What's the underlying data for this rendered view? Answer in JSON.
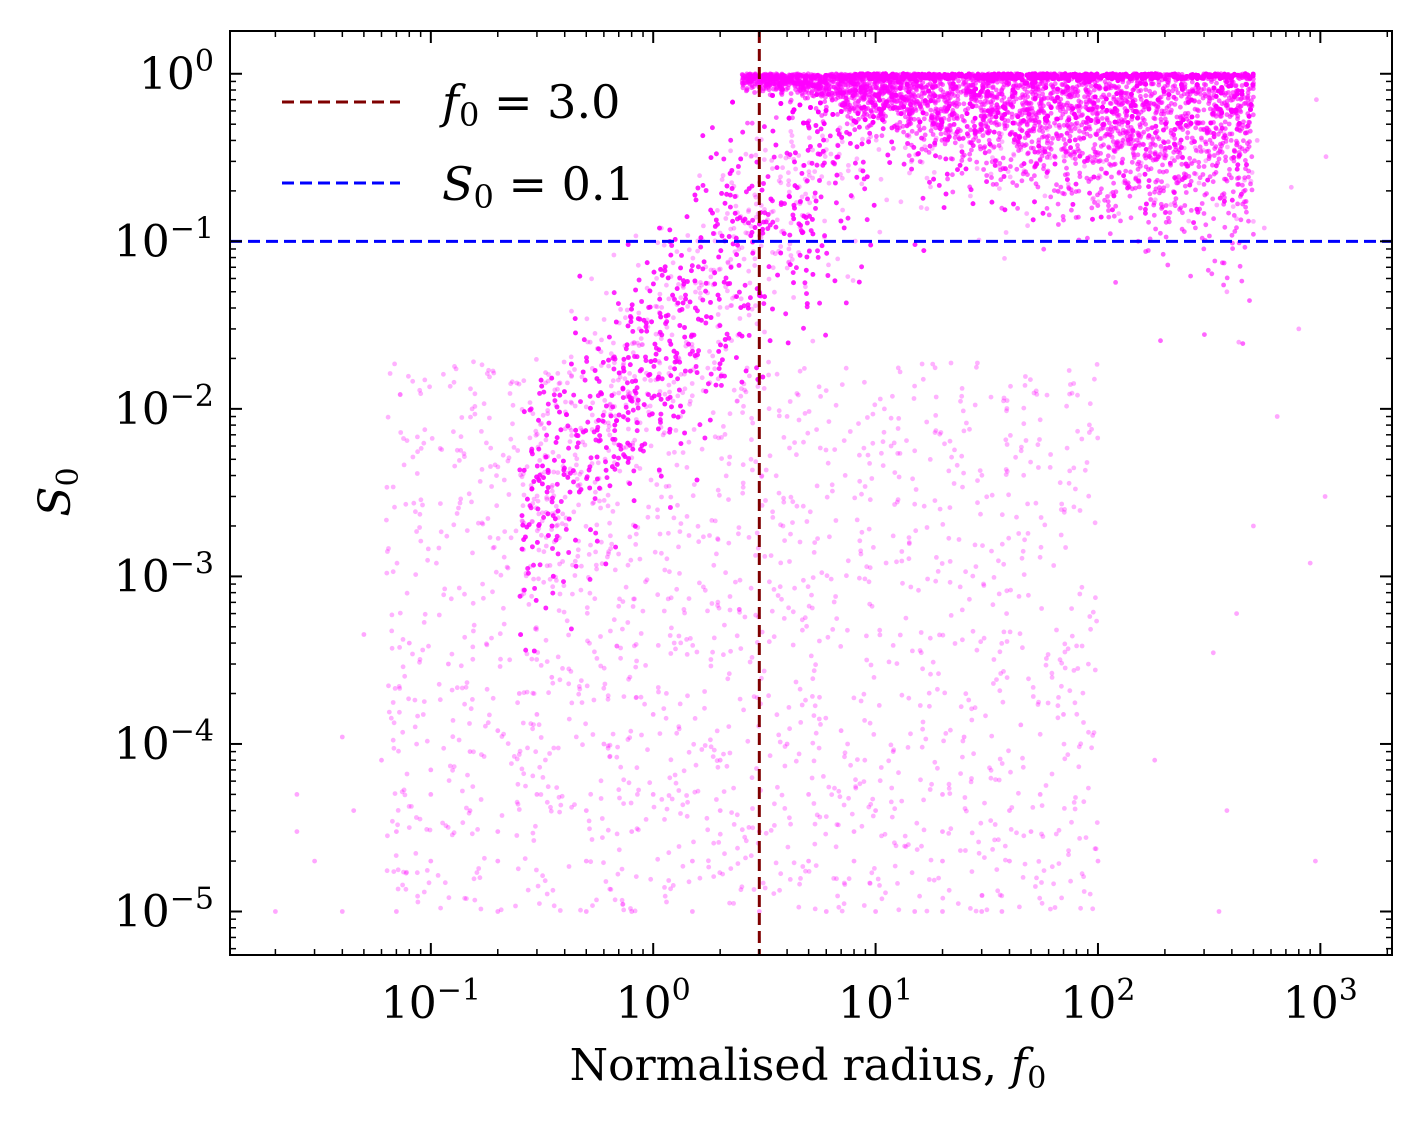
{
  "chart_data": {
    "type": "scatter",
    "title": "",
    "xlabel": "Normalised radius, f0",
    "xlabel_parts": {
      "text": "Normalised radius, ",
      "var": "f",
      "sub": "0"
    },
    "ylabel": "S0",
    "ylabel_parts": {
      "var": "S",
      "sub": "0"
    },
    "xscale": "log",
    "yscale": "log",
    "xlim": [
      0.0125,
      2100
    ],
    "ylim": [
      5.5e-06,
      1.8
    ],
    "xticks": [
      {
        "value": 0.1,
        "base": "10",
        "exp": "−1"
      },
      {
        "value": 1,
        "base": "10",
        "exp": "0"
      },
      {
        "value": 10,
        "base": "10",
        "exp": "1"
      },
      {
        "value": 100,
        "base": "10",
        "exp": "2"
      },
      {
        "value": 1000,
        "base": "10",
        "exp": "3"
      }
    ],
    "yticks": [
      {
        "value": 1e-05,
        "base": "10",
        "exp": "−5"
      },
      {
        "value": 0.0001,
        "base": "10",
        "exp": "−4"
      },
      {
        "value": 0.001,
        "base": "10",
        "exp": "−3"
      },
      {
        "value": 0.01,
        "base": "10",
        "exp": "−2"
      },
      {
        "value": 0.1,
        "base": "10",
        "exp": "−1"
      },
      {
        "value": 1,
        "base": "10",
        "exp": "0"
      }
    ],
    "grid": false,
    "legend_position": "top-left",
    "point_color": "#ff00ff",
    "reference_lines": [
      {
        "orientation": "vertical",
        "value": 3.0,
        "color": "#7f0000",
        "style": "dashed",
        "label": "f0 = 3.0",
        "label_var": "f",
        "label_sub": "0",
        "label_rest": " = 3.0"
      },
      {
        "orientation": "horizontal",
        "value": 0.1,
        "color": "#0000ff",
        "style": "dashed",
        "label": "S0 = 0.1",
        "label_var": "S",
        "label_sub": "0",
        "label_rest": " = 0.1"
      }
    ],
    "series": [
      {
        "points": [
          [
            0.02,
            1e-05
          ],
          [
            0.04,
            1e-05
          ],
          [
            0.07,
            1e-05
          ],
          [
            0.2,
            1e-05
          ],
          [
            0.5,
            1e-05
          ],
          [
            0.8,
            1e-05
          ],
          [
            1.5,
            1e-05
          ],
          [
            3,
            1e-05
          ],
          [
            6,
            1e-05
          ],
          [
            10,
            1e-05
          ],
          [
            15,
            1e-05
          ],
          [
            20,
            1e-05
          ],
          [
            30,
            1e-05
          ],
          [
            37,
            1e-05
          ],
          [
            350,
            1e-05
          ],
          [
            0.03,
            2e-05
          ],
          [
            0.1,
            2e-05
          ],
          [
            0.2,
            2e-05
          ],
          [
            0.5,
            2e-05
          ],
          [
            1.5,
            2e-05
          ],
          [
            5,
            2e-05
          ],
          [
            8,
            2e-05
          ],
          [
            20,
            2e-05
          ],
          [
            40,
            2e-05
          ],
          [
            100,
            2e-05
          ],
          [
            950,
            2e-05
          ],
          [
            0.025,
            3e-05
          ],
          [
            0.07,
            3e-05
          ],
          [
            0.2,
            3e-05
          ],
          [
            0.8,
            3e-05
          ],
          [
            3,
            3e-05
          ],
          [
            8,
            3e-05
          ],
          [
            20,
            3e-05
          ],
          [
            50,
            3e-05
          ],
          [
            0.045,
            4e-05
          ],
          [
            0.15,
            4e-05
          ],
          [
            0.5,
            4e-05
          ],
          [
            2,
            4e-05
          ],
          [
            10,
            4e-05
          ],
          [
            40,
            4e-05
          ],
          [
            380,
            4e-05
          ],
          [
            0.025,
            5e-05
          ],
          [
            0.1,
            5e-05
          ],
          [
            0.3,
            5e-05
          ],
          [
            1,
            5e-05
          ],
          [
            5,
            5e-05
          ],
          [
            20,
            5e-05
          ],
          [
            55,
            5e-05
          ],
          [
            0.04,
            0.00011
          ],
          [
            0.06,
            8e-05
          ],
          [
            0.1,
            7e-05
          ],
          [
            0.15,
            9e-05
          ],
          [
            0.2,
            0.00012
          ],
          [
            0.3,
            0.00015
          ],
          [
            0.25,
            0.0002
          ],
          [
            0.35,
            0.00025
          ],
          [
            0.05,
            0.00045
          ],
          [
            0.08,
            0.0004
          ],
          [
            0.12,
            0.0003
          ],
          [
            0.6,
            0.0001
          ],
          [
            1,
            0.00015
          ],
          [
            2,
            8e-05
          ],
          [
            4,
            0.0001
          ],
          [
            7,
            0.00012
          ],
          [
            12,
            9e-05
          ],
          [
            25,
            0.00011
          ],
          [
            45,
            0.00013
          ],
          [
            70,
            0.00015
          ],
          [
            180,
            8e-05
          ],
          [
            330,
            0.00035
          ],
          [
            420,
            0.0006
          ],
          [
            900,
            0.0012
          ],
          [
            1050,
            0.003
          ],
          [
            500,
            0.002
          ],
          [
            800,
            0.03
          ],
          [
            640,
            0.009
          ],
          [
            560,
            0.12
          ],
          [
            520,
            0.4
          ],
          [
            740,
            0.21
          ],
          [
            960,
            0.7
          ],
          [
            1060,
            0.32
          ],
          [
            430,
            0.025
          ],
          [
            380,
            0.05
          ]
        ]
      }
    ],
    "density_bands": [
      {
        "x_min": 0.1,
        "x_max": 3,
        "y_center_fn": "core",
        "count": 700
      }
    ]
  }
}
